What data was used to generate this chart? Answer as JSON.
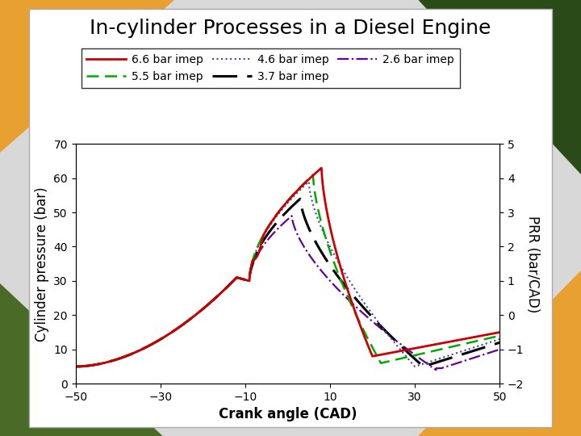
{
  "title": "In-cylinder Processes in a Diesel Engine",
  "xlabel": "Crank angle (CAD)",
  "ylabel_left": "Cylinder pressure (bar)",
  "ylabel_right": "PRR (bar/CAD)",
  "xlim": [
    -50,
    50
  ],
  "ylim_left": [
    0,
    70
  ],
  "ylim_right": [
    -2,
    5
  ],
  "xticks": [
    -50,
    -30,
    -10,
    10,
    30,
    50
  ],
  "yticks_left": [
    0,
    10,
    20,
    30,
    40,
    50,
    60,
    70
  ],
  "yticks_right": [
    -2,
    -1,
    0,
    1,
    2,
    3,
    4,
    5
  ],
  "title_fontsize": 18,
  "axis_label_fontsize": 12,
  "tick_fontsize": 10,
  "legend_fontsize": 10,
  "plot_bg": "#ffffff",
  "series": [
    {
      "label": "6.6 bar imep",
      "color": "#cc0000",
      "linestyle": "solid",
      "linewidth": 2.0,
      "dashes": null
    },
    {
      "label": "5.5 bar imep",
      "color": "#00aa00",
      "linestyle": "dashed",
      "linewidth": 1.8,
      "dashes": [
        6,
        3
      ]
    },
    {
      "label": "4.6 bar imep",
      "color": "#4444bb",
      "linestyle": "dotted",
      "linewidth": 1.5,
      "dashes": null
    },
    {
      "label": "3.7 bar imep",
      "color": "#000000",
      "linestyle": "dashed",
      "linewidth": 2.2,
      "dashes": [
        10,
        4
      ]
    },
    {
      "label": "2.6 bar imep",
      "color": "#660099",
      "linestyle": "dashdot",
      "linewidth": 1.6,
      "dashes": null
    }
  ],
  "bg_left_top": "#e8a040",
  "bg_right_top": "#2a4a1a",
  "bg_left_bot": "#5a7a3a",
  "bg_right_bot": "#e8a040",
  "outer_box_color": "#cccccc",
  "inner_box_color": "#ffffff"
}
